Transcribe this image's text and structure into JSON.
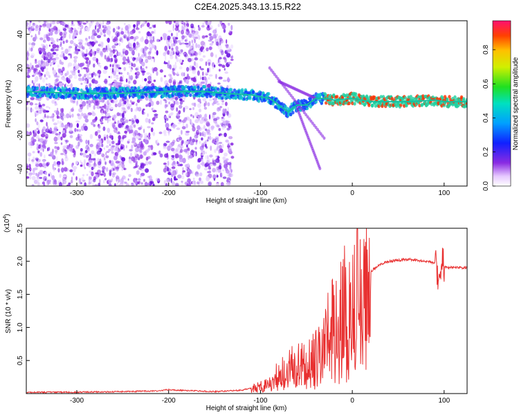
{
  "title": "C2E4.2025.343.13.15.R22",
  "chart_data": [
    {
      "type": "heatmap",
      "xlabel": "Height of straight line (km)",
      "ylabel": "Frequency (Hz)",
      "xlim": [
        -355,
        125
      ],
      "ylim": [
        -50,
        48
      ],
      "xticks": [
        -300,
        -200,
        -100,
        0,
        100
      ],
      "yticks": [
        -40,
        -20,
        0,
        20,
        40
      ],
      "colorbar": {
        "label": "Normalized spectral amplitude",
        "range": [
          0,
          0.97
        ],
        "ticks": [
          0.0,
          0.2,
          0.4,
          0.6,
          0.8
        ]
      },
      "ridge": {
        "x": [
          -355,
          -300,
          -250,
          -200,
          -160,
          -140,
          -110,
          -90,
          -80,
          -70,
          -60,
          -50,
          -45,
          -40,
          -30,
          -20,
          0,
          20,
          60,
          90,
          100,
          125
        ],
        "y": [
          6,
          5,
          5,
          6,
          6,
          5,
          4,
          2,
          -2,
          -6,
          -2,
          -2,
          0,
          2,
          2,
          1,
          2,
          0,
          0,
          1,
          0,
          0
        ]
      }
    },
    {
      "type": "line",
      "xlabel": "Height of straight line (km)",
      "ylabel": "SNR (10 * v/v)",
      "scale_label": "(x10",
      "scale_exp": "4",
      "xlim": [
        -355,
        125
      ],
      "ylim": [
        0,
        2.5
      ],
      "xticks": [
        -300,
        -200,
        -100,
        0,
        100
      ],
      "yticks": [
        0.5,
        1.0,
        1.5,
        2.0,
        2.5
      ],
      "ytick_labels": [
        "0.5",
        "1.0",
        "1.5",
        "2.0",
        "2.5"
      ],
      "series": [
        {
          "name": "SNR",
          "color": "#e83030",
          "x": [
            -355,
            -300,
            -250,
            -210,
            -200,
            -190,
            -150,
            -120,
            -100,
            -90,
            -80,
            -70,
            -60,
            -50,
            -40,
            -30,
            -25,
            -20,
            -15,
            -10,
            -5,
            0,
            5,
            10,
            20,
            30,
            40,
            60,
            80,
            90,
            95,
            98,
            100,
            105,
            110,
            125
          ],
          "y": [
            0.02,
            0.02,
            0.03,
            0.04,
            0.06,
            0.05,
            0.03,
            0.05,
            0.12,
            0.2,
            0.32,
            0.4,
            0.52,
            0.48,
            0.6,
            0.9,
            1.3,
            1.1,
            1.3,
            1.45,
            1.55,
            1.6,
            1.7,
            1.75,
            1.85,
            1.95,
            2.0,
            2.03,
            2.0,
            1.98,
            1.7,
            2.1,
            1.92,
            1.9,
            1.91,
            1.9
          ]
        }
      ]
    }
  ]
}
